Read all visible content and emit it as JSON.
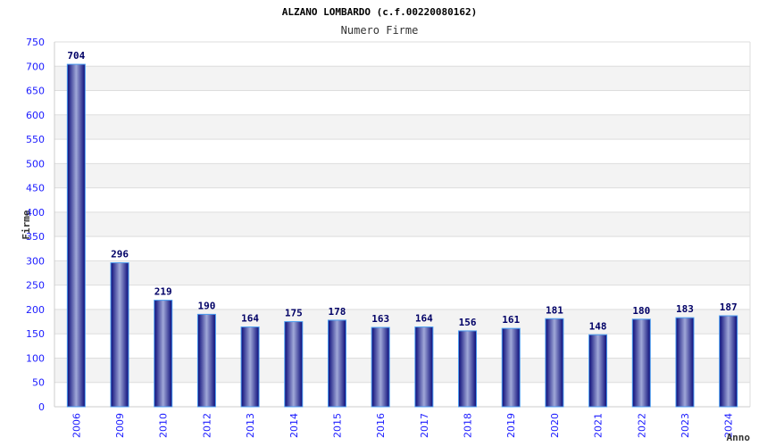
{
  "chart_data": {
    "type": "bar",
    "title": "ALZANO LOMBARDO (c.f.00220080162)",
    "subtitle": "Numero Firme",
    "xlabel": "Anno",
    "ylabel": "Firme",
    "ylim": [
      0,
      750
    ],
    "ytick_step": 50,
    "grid": true,
    "categories": [
      "2006",
      "2009",
      "2010",
      "2012",
      "2013",
      "2014",
      "2015",
      "2016",
      "2017",
      "2018",
      "2019",
      "2020",
      "2021",
      "2022",
      "2023",
      "2024"
    ],
    "values": [
      704,
      296,
      219,
      190,
      164,
      175,
      178,
      163,
      164,
      156,
      161,
      181,
      148,
      180,
      183,
      187
    ],
    "colors": {
      "bar_dark": "#0a0a78",
      "bar_light": "#a0a8d8",
      "bar_border": "#4a9cf0",
      "band": "#f3f3f3",
      "grid": "#dddddd",
      "tick": "#1a1aff",
      "label": "#000066"
    }
  }
}
